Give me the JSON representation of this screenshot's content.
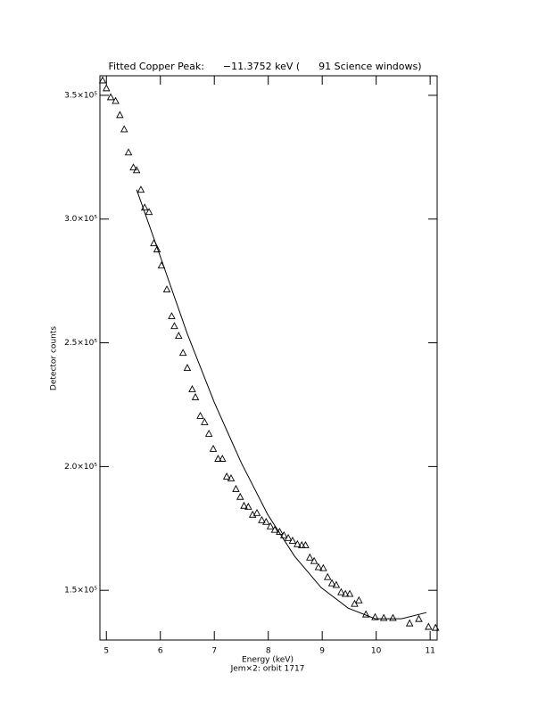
{
  "chart_data": {
    "type": "scatter",
    "title": "Fitted Copper Peak:      −11.3752 keV (      91 Science windows)",
    "x_label": "Energy (keV)",
    "y_label": "Detector counts",
    "note": "Jem×2: orbit 1717",
    "xlim": [
      4.88,
      11.13
    ],
    "xticks": [
      5,
      6,
      7,
      8,
      9,
      10,
      11
    ],
    "ylim": [
      129900,
      357900
    ],
    "yticks": [
      {
        "value": 150000,
        "label": "1.5×10⁵"
      },
      {
        "value": 200000,
        "label": "2.0×10⁵"
      },
      {
        "value": 250000,
        "label": "2.5×10⁵"
      },
      {
        "value": 300000,
        "label": "3.0×10⁵"
      },
      {
        "value": 350000,
        "label": "3.5×10⁵"
      }
    ],
    "series": [
      {
        "marker": "triangle",
        "color": "#000000",
        "x": [
          4.93,
          5.0,
          5.08,
          5.17,
          5.25,
          5.33,
          5.41,
          5.5,
          5.56,
          5.64,
          5.71,
          5.79,
          5.88,
          5.94,
          6.02,
          6.12,
          6.21,
          6.26,
          6.34,
          6.42,
          6.5,
          6.59,
          6.65,
          6.74,
          6.82,
          6.9,
          6.98,
          7.07,
          7.15,
          7.23,
          7.31,
          7.4,
          7.48,
          7.55,
          7.63,
          7.71,
          7.79,
          7.88,
          7.96,
          8.04,
          8.12,
          8.21,
          8.29,
          8.37,
          8.45,
          8.54,
          8.62,
          8.69,
          8.77,
          8.85,
          8.93,
          9.02,
          9.1,
          9.18,
          9.26,
          9.35,
          9.43,
          9.51,
          9.6,
          9.68,
          9.81,
          9.98,
          10.14,
          10.31,
          10.62,
          10.79,
          10.97,
          11.1
        ],
        "values": [
          356100,
          352900,
          349300,
          347800,
          342100,
          336300,
          327000,
          320900,
          319800,
          311900,
          304700,
          302900,
          290300,
          287800,
          281300,
          271600,
          260800,
          256800,
          252900,
          246000,
          239900,
          231300,
          228100,
          220500,
          218000,
          213300,
          207200,
          203200,
          203200,
          196000,
          195300,
          191000,
          187800,
          184200,
          183800,
          180600,
          181300,
          178400,
          177700,
          175900,
          174500,
          173700,
          172300,
          171200,
          170100,
          168700,
          168300,
          168300,
          163300,
          161900,
          159400,
          159000,
          155400,
          152900,
          152200,
          149300,
          148600,
          148600,
          144600,
          146000,
          140300,
          139200,
          138900,
          138900,
          136700,
          138500,
          135300,
          134900
        ]
      },
      {
        "marker": "line",
        "color": "#000000",
        "x": [
          5.56,
          6.01,
          6.5,
          7.0,
          7.5,
          7.99,
          8.49,
          8.98,
          9.48,
          9.98,
          10.47,
          10.93
        ],
        "values": [
          311900,
          284200,
          253600,
          225900,
          201500,
          180600,
          163700,
          151100,
          142800,
          138500,
          138500,
          141000
        ]
      }
    ]
  }
}
